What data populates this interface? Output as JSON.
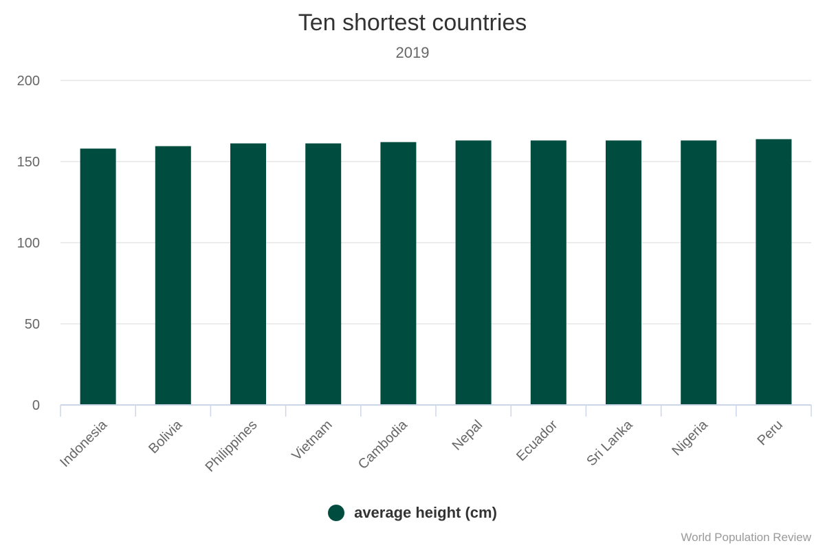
{
  "chart_data": {
    "type": "bar",
    "title": "Ten shortest countries",
    "subtitle": "2019",
    "xlabel": "",
    "ylabel": "",
    "ylim": [
      0,
      200
    ],
    "yticks": [
      0,
      50,
      100,
      150,
      200
    ],
    "categories": [
      "Indonesia",
      "Bolivia",
      "Philippines",
      "Vietnam",
      "Cambodia",
      "Nepal",
      "Ecuador",
      "Sri Lanka",
      "Nigeria",
      "Peru"
    ],
    "series": [
      {
        "name": "average height (cm)",
        "values": [
          158,
          159.5,
          161.2,
          161.2,
          162,
          163,
          163,
          163,
          163,
          163.8
        ]
      }
    ],
    "grid": true,
    "legend_position": "bottom-center",
    "colors": {
      "bar": "#004d40",
      "grid": "#e6e6e6",
      "axis": "#ccd6eb"
    }
  },
  "credits": "World Population Review"
}
